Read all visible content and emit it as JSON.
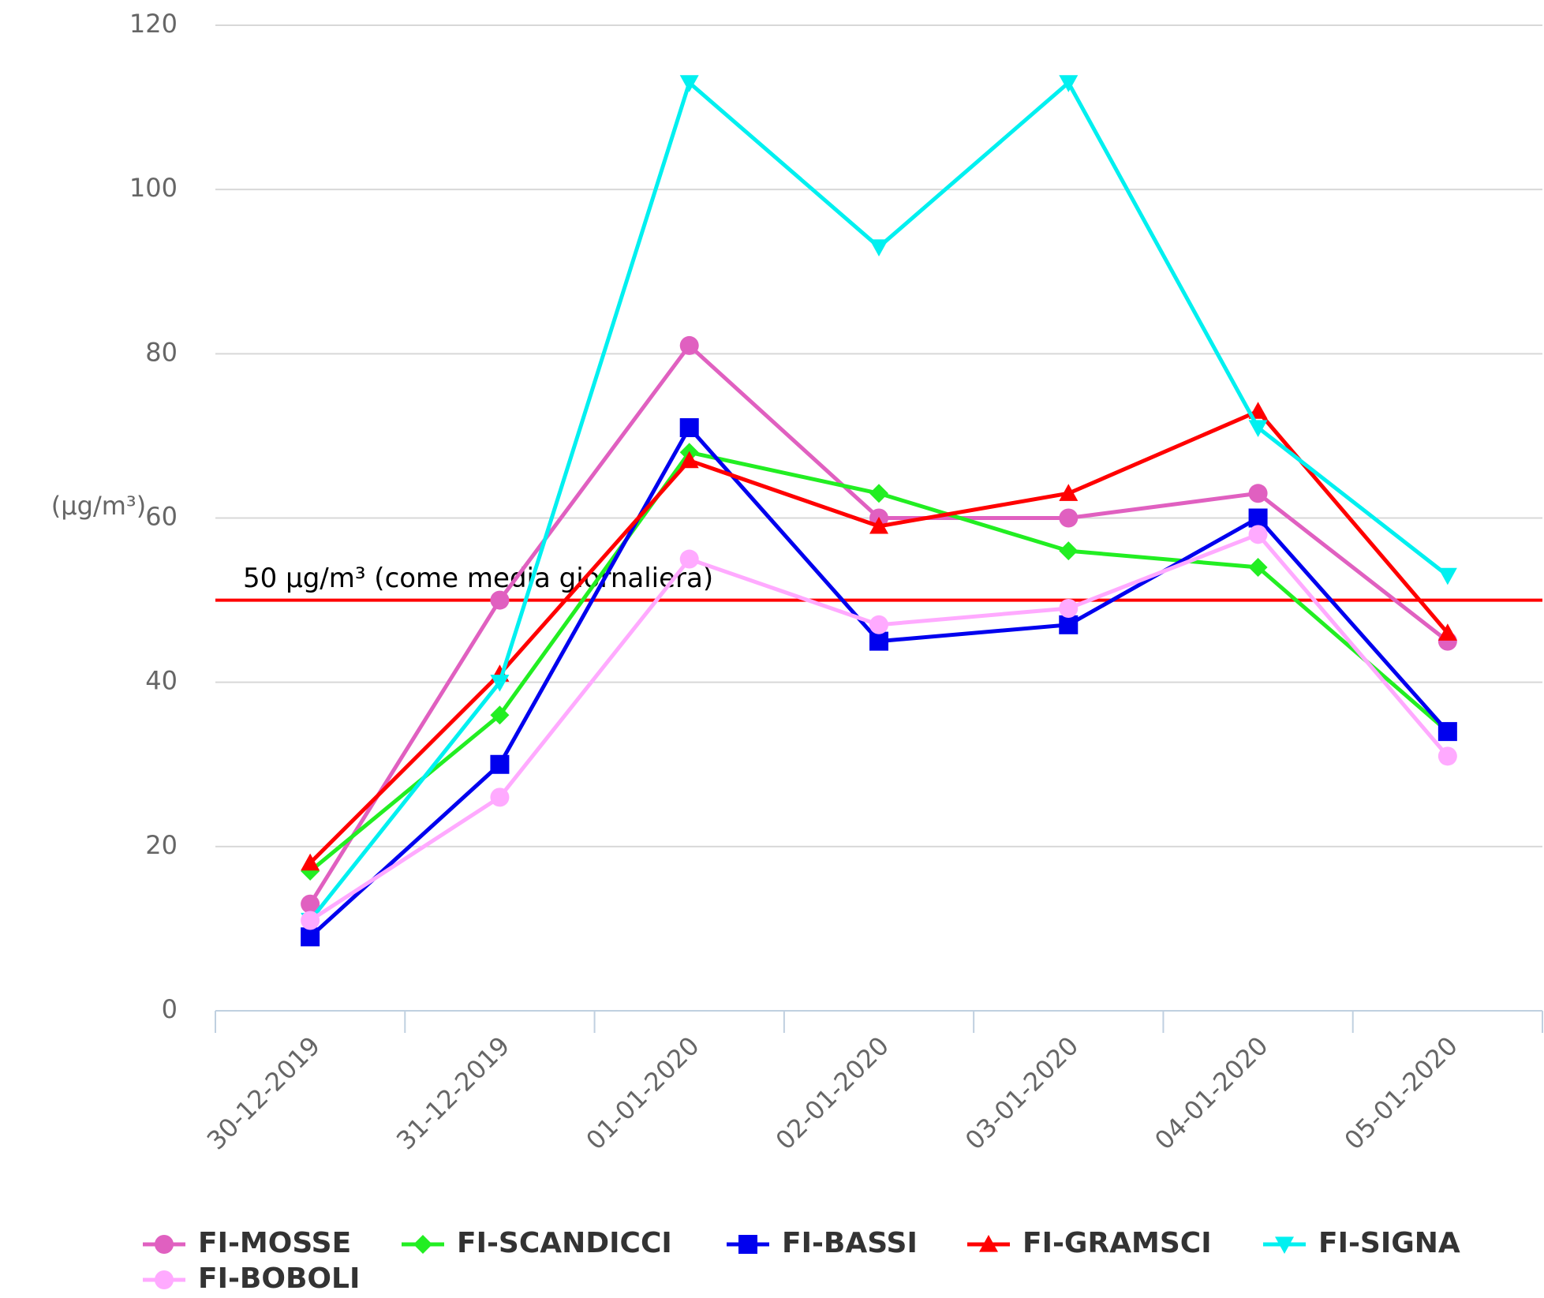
{
  "chart_data": {
    "type": "line",
    "y_axis_label": "(μg/m³)",
    "categories": [
      "30-12-2019",
      "31-12-2019",
      "01-01-2020",
      "02-01-2020",
      "03-01-2020",
      "04-01-2020",
      "05-01-2020"
    ],
    "series": [
      {
        "name": "FI-MOSSE",
        "color": "#e060c0",
        "marker": "circle",
        "values": [
          13,
          50,
          81,
          60,
          60,
          63,
          45
        ]
      },
      {
        "name": "FI-SCANDICCI",
        "color": "#22ee22",
        "marker": "diamond",
        "values": [
          17,
          36,
          68,
          63,
          56,
          54,
          34
        ]
      },
      {
        "name": "FI-BASSI",
        "color": "#0000ee",
        "marker": "square",
        "values": [
          9,
          30,
          71,
          45,
          47,
          60,
          34
        ]
      },
      {
        "name": "FI-GRAMSCI",
        "color": "#ff0000",
        "marker": "triangle",
        "values": [
          18,
          41,
          67,
          59,
          63,
          73,
          46
        ]
      },
      {
        "name": "FI-SIGNA",
        "color": "#00f0f0",
        "marker": "triangle-down",
        "values": [
          11,
          40,
          113,
          93,
          113,
          71,
          53
        ]
      },
      {
        "name": "FI-BOBOLI",
        "color": "#ffaaff",
        "marker": "circle",
        "values": [
          11,
          26,
          55,
          47,
          49,
          58,
          31
        ]
      }
    ],
    "plot_line": {
      "value": 50,
      "label": "50 μg/m³ (come media giornaliera)",
      "color": "#ff0000"
    },
    "ylim": [
      0,
      120
    ],
    "yticks": [
      0,
      20,
      40,
      60,
      80,
      100,
      120
    ],
    "grid": true
  }
}
